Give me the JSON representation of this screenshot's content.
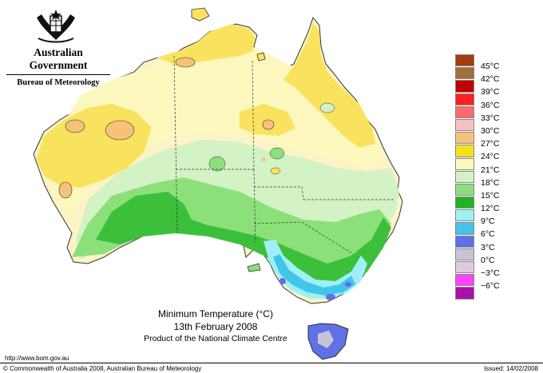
{
  "header": {
    "government": "Australian Government",
    "bureau": "Bureau of Meteorology"
  },
  "map": {
    "title": "Minimum Temperature (°C)",
    "date": "13th February 2008",
    "product": "Product of the National Climate Centre",
    "colors": {
      "land_22": "#fbf7cd",
      "land_2427": "#fcf3c0",
      "band_2730": "#f9e35e",
      "band_3033": "#f6c27a",
      "band_1821": "#d3f2c6",
      "band_1518": "#8ce07a",
      "band_1215": "#3cc03c",
      "band_912": "#2ea82e",
      "band_69": "#9ff0f5",
      "band_36": "#42c5e8",
      "band_03": "#6070e6",
      "band_m30": "#c8c3d6"
    }
  },
  "legend": {
    "items": [
      {
        "label": "45°C",
        "color": "#a33b10"
      },
      {
        "label": "42°C",
        "color": "#a0703a"
      },
      {
        "label": "39°C",
        "color": "#c00000"
      },
      {
        "label": "36°C",
        "color": "#ff2020"
      },
      {
        "label": "33°C",
        "color": "#ff6b6b"
      },
      {
        "label": "30°C",
        "color": "#f9c0c0"
      },
      {
        "label": "27°C",
        "color": "#f6c27a"
      },
      {
        "label": "24°C",
        "color": "#f5e11c"
      },
      {
        "label": "21°C",
        "color": "#fbf7bd"
      },
      {
        "label": "18°C",
        "color": "#d3f2c6"
      },
      {
        "label": "15°C",
        "color": "#8ce07a"
      },
      {
        "label": "12°C",
        "color": "#25b125"
      },
      {
        "label": "9°C",
        "color": "#9ff0f5"
      },
      {
        "label": "6°C",
        "color": "#42c5e8"
      },
      {
        "label": "3°C",
        "color": "#6070e6"
      },
      {
        "label": "0°C",
        "color": "#c8c3d6"
      },
      {
        "label": "−3°C",
        "color": "#e1c9e1"
      },
      {
        "label": "−6°C",
        "color": "#ff44ff"
      },
      {
        "label": "",
        "color": "#aa10aa"
      }
    ]
  },
  "footer": {
    "url": "http://www.bom.gov.au",
    "copyright": "© Commonwealth of Australia 2008, Australian Bureau of Meteorology",
    "issued": "Issued: 14/02/2008"
  }
}
